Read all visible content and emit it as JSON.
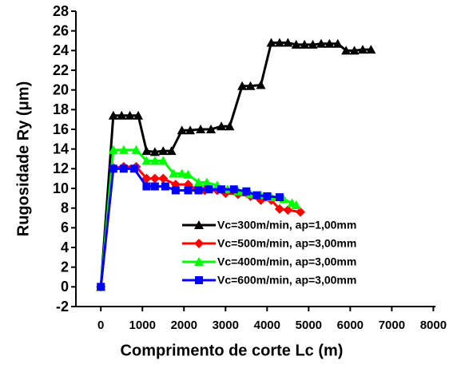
{
  "chart_data": {
    "type": "line",
    "x_label": "Comprimento de corte Lc (m)",
    "y_label": "Rugosidade Ry (μm)",
    "xlim": [
      -600,
      8050
    ],
    "xticks": [
      0,
      1000,
      2000,
      3000,
      4000,
      5000,
      6000,
      7000,
      8000
    ],
    "ylim": [
      -2,
      28
    ],
    "yticks": [
      -2,
      0,
      2,
      4,
      6,
      8,
      10,
      12,
      14,
      16,
      18,
      20,
      22,
      24,
      26,
      28
    ],
    "grid": false,
    "legend_position": "lower right",
    "series": [
      {
        "name": "Vc=300m/min, ap=1,00mm",
        "color": "#000000",
        "marker": "triangle",
        "x": [
          0,
          300,
          500,
          700,
          900,
          1100,
          1300,
          1500,
          1700,
          1950,
          2150,
          2400,
          2650,
          2900,
          3100,
          3400,
          3600,
          3850,
          4100,
          4300,
          4500,
          4700,
          4900,
          5100,
          5300,
          5500,
          5700,
          5900,
          6100,
          6300,
          6500
        ],
        "values": [
          0,
          17.4,
          17.4,
          17.4,
          17.4,
          13.8,
          13.7,
          13.8,
          13.8,
          15.9,
          15.9,
          16.0,
          16.0,
          16.3,
          16.3,
          20.4,
          20.4,
          20.5,
          24.8,
          24.8,
          24.8,
          24.6,
          24.6,
          24.6,
          24.7,
          24.7,
          24.7,
          24.0,
          24.0,
          24.1,
          24.1
        ]
      },
      {
        "name": "Vc=500m/min, ap=3,00mm",
        "color": "#ff0000",
        "marker": "diamond",
        "x": [
          0,
          300,
          550,
          850,
          1100,
          1300,
          1500,
          1800,
          2100,
          2300,
          2500,
          2800,
          3000,
          3300,
          3600,
          3850,
          4100,
          4300,
          4500,
          4800
        ],
        "values": [
          0,
          12.1,
          12.2,
          12.2,
          11.0,
          11.0,
          11.0,
          10.4,
          10.4,
          9.9,
          9.8,
          9.8,
          9.5,
          9.4,
          9.2,
          8.8,
          8.8,
          7.9,
          7.8,
          7.6
        ]
      },
      {
        "name": "Vc=400m/min, ap=3,00mm",
        "color": "#00ff00",
        "marker": "triangle",
        "x": [
          0,
          300,
          550,
          850,
          1100,
          1300,
          1500,
          1750,
          1950,
          2100,
          2350,
          2550,
          2800,
          3050,
          3300,
          3600,
          3850,
          4100,
          4400,
          4600,
          4700
        ],
        "values": [
          0,
          13.9,
          13.9,
          13.9,
          12.8,
          12.8,
          12.8,
          11.5,
          11.5,
          11.4,
          10.6,
          10.6,
          10.3,
          9.9,
          9.7,
          9.4,
          9.3,
          9.1,
          8.9,
          8.5,
          8.3
        ]
      },
      {
        "name": "Vc=600m/min, ap=3,00mm",
        "color": "#0000ff",
        "marker": "square",
        "x": [
          0,
          300,
          550,
          800,
          1100,
          1300,
          1550,
          1800,
          2100,
          2350,
          2600,
          2900,
          3200,
          3500,
          3750,
          4000,
          4300
        ],
        "values": [
          0,
          12.0,
          12.0,
          12.0,
          10.2,
          10.2,
          10.2,
          9.8,
          9.8,
          9.8,
          9.9,
          9.9,
          9.9,
          9.7,
          9.3,
          9.2,
          9.1
        ]
      }
    ]
  }
}
